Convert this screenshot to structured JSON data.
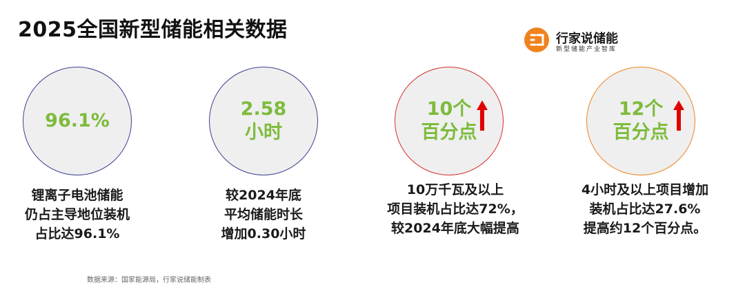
{
  "title": "2025全国新型储能相关数据",
  "brand": {
    "name": "行家说储能",
    "subtitle": "新型储能产业智库"
  },
  "stats": [
    {
      "value_lines": [
        "96.1%"
      ],
      "trend": "none",
      "desc_lines": [
        "锂离子电池储能",
        "仍占主导地位装机",
        "占比达96.1%"
      ]
    },
    {
      "value_lines": [
        "2.58",
        "小时"
      ],
      "trend": "none",
      "desc_lines": [
        "较2024年底",
        "平均储能时长",
        "增加0.30小时"
      ]
    },
    {
      "value_lines": [
        "10个",
        "百分点"
      ],
      "trend": "up",
      "desc_lines": [
        "10万千瓦及以上",
        "项目装机占比达72%，",
        "较2024年底大幅提高"
      ]
    },
    {
      "value_lines": [
        "12个",
        "百分点"
      ],
      "trend": "up",
      "desc_lines": [
        "4小时及以上项目增加",
        "装机占比达27.6%",
        "提高约12个百分点。"
      ]
    }
  ],
  "source": "数据来源：国家能源局，行家说储能制表",
  "colors": {
    "value_green": "#7dbb3c",
    "arrow_red": "#e00000",
    "brand_orange": "#f0821e",
    "circle_border_blue": "#3a3f8f",
    "circle_border_red": "#d62f2f",
    "circle_border_orange": "#f0821e",
    "circle_fill": "#efefef"
  }
}
